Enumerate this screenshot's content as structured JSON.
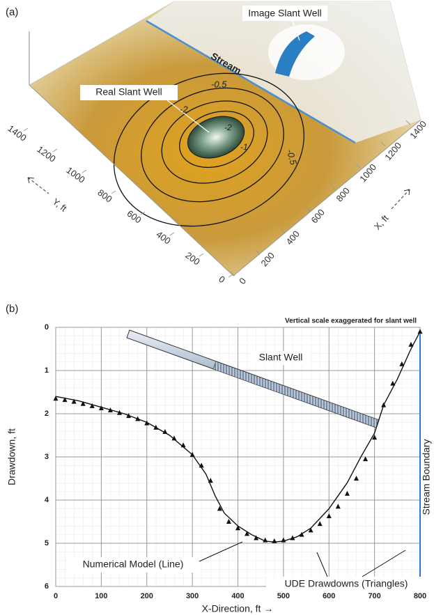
{
  "chart_data": [
    {
      "type": "surface",
      "panel_label": "(a)",
      "annotations": [
        "Image Slant Well",
        "Stream",
        "Real Slant Well"
      ],
      "contour_labels": [
        "-0.5",
        "-2",
        "-2",
        "-1",
        "-0.5"
      ],
      "xlabel": "X, ft",
      "ylabel": "Y, ft",
      "xlim": [
        0,
        1400
      ],
      "ylim": [
        0,
        1400
      ],
      "xticks": [
        0,
        200,
        400,
        600,
        800,
        1000,
        1200,
        1400
      ],
      "yticks": [
        0,
        200,
        400,
        600,
        800,
        1000,
        1200,
        1400
      ]
    },
    {
      "type": "line",
      "panel_label": "(b)",
      "note": "Vertical scale exaggerated for slant well",
      "annotations": [
        "Slant Well",
        "Stream Boundary"
      ],
      "xlabel": "X-Direction, ft →",
      "ylabel": "Drawdown, ft",
      "xlim": [
        0,
        800
      ],
      "ylim": [
        6,
        0
      ],
      "xticks": [
        0,
        100,
        200,
        300,
        400,
        500,
        600,
        700,
        800
      ],
      "yticks": [
        0,
        1,
        2,
        3,
        4,
        5,
        6
      ],
      "grid": true,
      "series": [
        {
          "name": "Numerical Model (Line)",
          "color": "#111111",
          "marker": "none",
          "x": [
            0,
            50,
            100,
            150,
            200,
            250,
            300,
            330,
            350,
            370,
            400,
            430,
            460,
            480,
            500,
            530,
            560,
            600,
            640,
            670,
            700,
            720,
            750,
            780,
            800
          ],
          "values": [
            1.6,
            1.7,
            1.85,
            2.0,
            2.2,
            2.5,
            2.95,
            3.4,
            3.9,
            4.3,
            4.6,
            4.8,
            4.95,
            4.97,
            4.95,
            4.85,
            4.65,
            4.2,
            3.6,
            3.0,
            2.45,
            1.8,
            1.2,
            0.5,
            0.1
          ]
        },
        {
          "name": "UDE Drawdowns (Triangles)",
          "color": "#111111",
          "marker": "triangle",
          "x": [
            0,
            20,
            40,
            60,
            80,
            100,
            120,
            140,
            160,
            180,
            200,
            220,
            240,
            260,
            280,
            300,
            320,
            340,
            360,
            380,
            400,
            420,
            440,
            460,
            480,
            500,
            520,
            540,
            560,
            580,
            600,
            620,
            640,
            660,
            680,
            700,
            720,
            740,
            760,
            780,
            800
          ],
          "values": [
            1.65,
            1.68,
            1.72,
            1.77,
            1.82,
            1.87,
            1.92,
            1.98,
            2.05,
            2.12,
            2.22,
            2.32,
            2.42,
            2.57,
            2.73,
            2.95,
            3.2,
            3.55,
            4.2,
            4.5,
            4.65,
            4.78,
            4.88,
            4.93,
            4.95,
            4.93,
            4.88,
            4.8,
            4.7,
            4.55,
            4.37,
            4.15,
            3.85,
            3.5,
            3.05,
            2.55,
            1.8,
            1.3,
            0.85,
            0.4,
            0.1
          ]
        }
      ]
    }
  ]
}
